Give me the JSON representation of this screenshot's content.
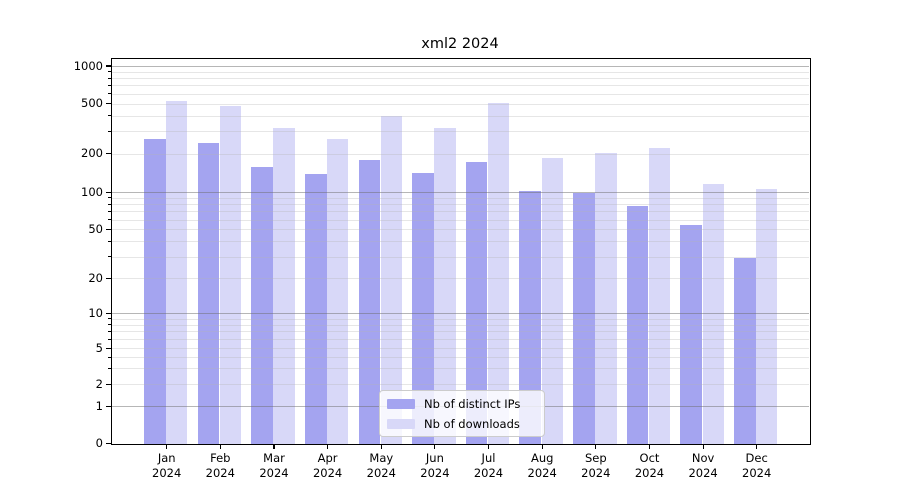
{
  "title": "xml2 2024",
  "legend": {
    "items": [
      {
        "label": "Nb of distinct IPs",
        "color": "#a4a4f0"
      },
      {
        "label": "Nb of downloads",
        "color": "#d8d8f8"
      }
    ]
  },
  "chart_data": {
    "type": "bar",
    "title": "xml2 2024",
    "categories": [
      "Jan",
      "Feb",
      "Mar",
      "Apr",
      "May",
      "Jun",
      "Jul",
      "Aug",
      "Sep",
      "Oct",
      "Nov",
      "Dec"
    ],
    "year_label": "2024",
    "series": [
      {
        "name": "Nb of distinct IPs",
        "color": "#a4a4f0",
        "values": [
          260,
          242,
          157,
          140,
          179,
          142,
          172,
          103,
          98,
          78,
          54,
          29
        ]
      },
      {
        "name": "Nb of downloads",
        "color": "#d8d8f8",
        "values": [
          520,
          475,
          320,
          262,
          397,
          319,
          508,
          184,
          202,
          220,
          117,
          106
        ]
      }
    ],
    "yscale": "symlog",
    "y_ticks": [
      0,
      1,
      2,
      5,
      10,
      20,
      50,
      100,
      200,
      500,
      1000
    ],
    "ylim": [
      0,
      1150
    ],
    "grid": true,
    "major_grid_at": [
      1,
      10,
      100,
      1000
    ],
    "legend_position": "lower-center-inside",
    "colors": {
      "major_grid": "#bbbbbb",
      "minor_grid": "#eaeaea",
      "spine": "#000000"
    }
  }
}
